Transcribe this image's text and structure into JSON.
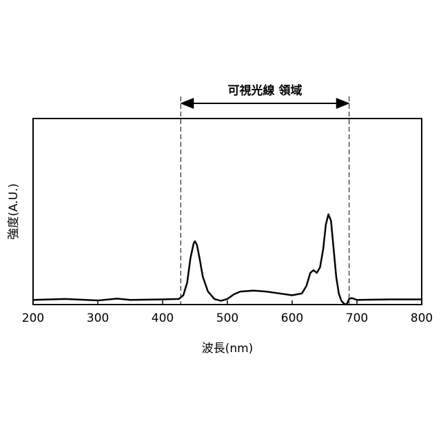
{
  "chart_data": {
    "type": "line",
    "annotation": {
      "text": "可視光線 領域",
      "x_start": 428,
      "x_end": 688
    },
    "xlabel": "波長(nm)",
    "ylabel": "強度(A.U.)",
    "x": [
      200,
      250,
      300,
      330,
      350,
      400,
      425,
      432,
      438,
      443,
      448,
      450,
      453,
      457,
      462,
      470,
      480,
      490,
      500,
      510,
      520,
      540,
      560,
      580,
      600,
      615,
      622,
      628,
      633,
      638,
      643,
      648,
      652,
      656,
      660,
      664,
      668,
      672,
      676,
      680,
      684,
      688,
      692,
      700,
      750,
      800
    ],
    "series": [
      {
        "color": "#000000",
        "values": [
          0.025,
          0.03,
          0.022,
          0.032,
          0.025,
          0.028,
          0.03,
          0.05,
          0.12,
          0.25,
          0.33,
          0.34,
          0.32,
          0.25,
          0.15,
          0.07,
          0.03,
          0.02,
          0.03,
          0.055,
          0.07,
          0.075,
          0.07,
          0.06,
          0.05,
          0.06,
          0.1,
          0.17,
          0.185,
          0.17,
          0.2,
          0.3,
          0.43,
          0.485,
          0.45,
          0.3,
          0.15,
          0.06,
          0.02,
          0.005,
          0.0,
          0.03,
          0.035,
          0.025,
          0.028,
          0.028
        ]
      }
    ],
    "xlim": [
      200,
      800
    ],
    "xticks": [
      200,
      300,
      400,
      500,
      600,
      700,
      800
    ],
    "ylim": [
      0,
      1
    ]
  }
}
